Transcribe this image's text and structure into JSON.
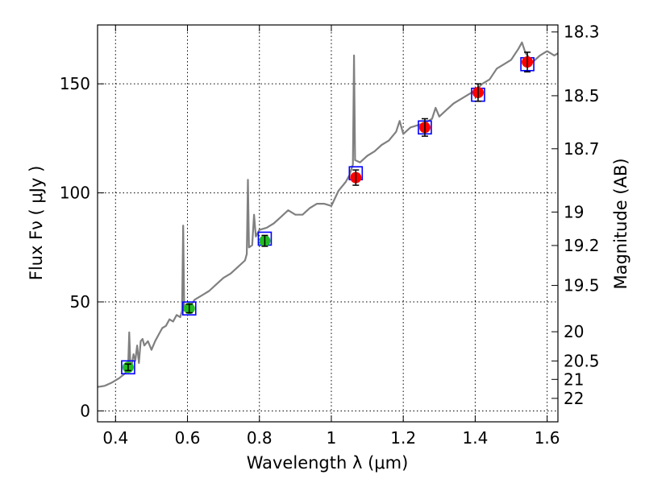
{
  "chart_data": {
    "type": "scatter",
    "xlabel": "Wavelength  λ (μm)",
    "ylabel": "Flux  Fν  ( μJy )",
    "y2label": "Magnitude (AB)",
    "xlim": [
      0.35,
      1.63
    ],
    "ylim": [
      -5,
      177
    ],
    "grid": true,
    "x_ticks": [
      {
        "value": 0.4,
        "label": "0.4"
      },
      {
        "value": 0.6,
        "label": "0.6"
      },
      {
        "value": 0.8,
        "label": "0.8"
      },
      {
        "value": 1.0,
        "label": "1"
      },
      {
        "value": 1.2,
        "label": "1.2"
      },
      {
        "value": 1.4,
        "label": "1.4"
      },
      {
        "value": 1.6,
        "label": "1.6"
      }
    ],
    "y_ticks": [
      {
        "value": 0,
        "label": "0"
      },
      {
        "value": 50,
        "label": "50"
      },
      {
        "value": 100,
        "label": "100"
      },
      {
        "value": 150,
        "label": "150"
      }
    ],
    "y2_ticks": [
      {
        "value": 18.3,
        "label": "18.3"
      },
      {
        "value": 18.5,
        "label": "18.5"
      },
      {
        "value": 18.7,
        "label": "18.7"
      },
      {
        "value": 19.0,
        "label": "19"
      },
      {
        "value": 19.2,
        "label": "19.2"
      },
      {
        "value": 19.5,
        "label": "19.5"
      },
      {
        "value": 20.0,
        "label": "20"
      },
      {
        "value": 20.5,
        "label": "20.5"
      },
      {
        "value": 21.0,
        "label": "21"
      },
      {
        "value": 22.0,
        "label": "22"
      }
    ],
    "model_spectrum": {
      "color": "#808080",
      "points": [
        [
          0.35,
          11
        ],
        [
          0.37,
          11.5
        ],
        [
          0.39,
          13
        ],
        [
          0.41,
          15
        ],
        [
          0.425,
          17
        ],
        [
          0.43,
          18
        ],
        [
          0.435,
          20
        ],
        [
          0.438,
          36
        ],
        [
          0.441,
          22
        ],
        [
          0.445,
          21
        ],
        [
          0.45,
          26
        ],
        [
          0.455,
          23
        ],
        [
          0.46,
          30
        ],
        [
          0.465,
          22
        ],
        [
          0.47,
          32
        ],
        [
          0.475,
          33
        ],
        [
          0.48,
          30
        ],
        [
          0.49,
          32
        ],
        [
          0.5,
          28
        ],
        [
          0.51,
          32
        ],
        [
          0.52,
          35
        ],
        [
          0.53,
          38
        ],
        [
          0.54,
          39
        ],
        [
          0.55,
          42
        ],
        [
          0.56,
          41
        ],
        [
          0.57,
          44
        ],
        [
          0.58,
          43
        ],
        [
          0.585,
          46
        ],
        [
          0.588,
          85
        ],
        [
          0.591,
          46
        ],
        [
          0.6,
          46
        ],
        [
          0.62,
          51
        ],
        [
          0.64,
          53
        ],
        [
          0.66,
          55
        ],
        [
          0.68,
          58
        ],
        [
          0.7,
          61
        ],
        [
          0.72,
          63
        ],
        [
          0.74,
          66
        ],
        [
          0.76,
          69
        ],
        [
          0.765,
          72
        ],
        [
          0.768,
          106
        ],
        [
          0.771,
          75
        ],
        [
          0.78,
          76
        ],
        [
          0.785,
          90
        ],
        [
          0.79,
          80
        ],
        [
          0.8,
          83
        ],
        [
          0.82,
          84
        ],
        [
          0.84,
          86
        ],
        [
          0.86,
          89
        ],
        [
          0.88,
          92
        ],
        [
          0.9,
          90
        ],
        [
          0.92,
          90
        ],
        [
          0.94,
          93
        ],
        [
          0.96,
          95
        ],
        [
          0.98,
          95
        ],
        [
          1.0,
          94
        ],
        [
          1.02,
          101
        ],
        [
          1.04,
          105
        ],
        [
          1.05,
          108
        ],
        [
          1.06,
          113
        ],
        [
          1.063,
          163
        ],
        [
          1.066,
          115
        ],
        [
          1.08,
          114
        ],
        [
          1.1,
          117
        ],
        [
          1.12,
          119
        ],
        [
          1.14,
          122
        ],
        [
          1.16,
          124
        ],
        [
          1.18,
          128
        ],
        [
          1.19,
          133
        ],
        [
          1.2,
          127
        ],
        [
          1.22,
          130
        ],
        [
          1.24,
          131
        ],
        [
          1.26,
          132
        ],
        [
          1.28,
          134
        ],
        [
          1.29,
          139
        ],
        [
          1.3,
          135
        ],
        [
          1.32,
          138
        ],
        [
          1.34,
          141
        ],
        [
          1.36,
          143
        ],
        [
          1.38,
          145
        ],
        [
          1.4,
          147
        ],
        [
          1.42,
          150
        ],
        [
          1.44,
          152
        ],
        [
          1.46,
          157
        ],
        [
          1.48,
          159
        ],
        [
          1.5,
          161
        ],
        [
          1.52,
          166
        ],
        [
          1.53,
          169
        ],
        [
          1.54,
          164
        ],
        [
          1.56,
          160
        ],
        [
          1.58,
          163
        ],
        [
          1.6,
          165
        ],
        [
          1.62,
          163
        ],
        [
          1.63,
          164
        ]
      ]
    },
    "synthetic_photometry": {
      "marker": "open square",
      "color": "#0000ff",
      "points": [
        {
          "x": 0.435,
          "y": 20
        },
        {
          "x": 0.605,
          "y": 47
        },
        {
          "x": 0.815,
          "y": 79
        },
        {
          "x": 1.068,
          "y": 109
        },
        {
          "x": 1.26,
          "y": 130
        },
        {
          "x": 1.408,
          "y": 145
        },
        {
          "x": 1.545,
          "y": 159
        }
      ]
    },
    "observed_optical": {
      "marker": "filled circle",
      "color": "#22bb22",
      "points": [
        {
          "x": 0.435,
          "y": 20,
          "err": 1.5
        },
        {
          "x": 0.605,
          "y": 47,
          "err": 2.0
        },
        {
          "x": 0.815,
          "y": 78,
          "err": 2.5
        }
      ]
    },
    "observed_nir": {
      "marker": "filled circle",
      "color": "#ff0000",
      "points": [
        {
          "x": 1.068,
          "y": 107,
          "err": 3.5
        },
        {
          "x": 1.26,
          "y": 130,
          "err": 4.0
        },
        {
          "x": 1.408,
          "y": 146,
          "err": 4.0
        },
        {
          "x": 1.545,
          "y": 160,
          "err": 4.5
        }
      ]
    }
  }
}
